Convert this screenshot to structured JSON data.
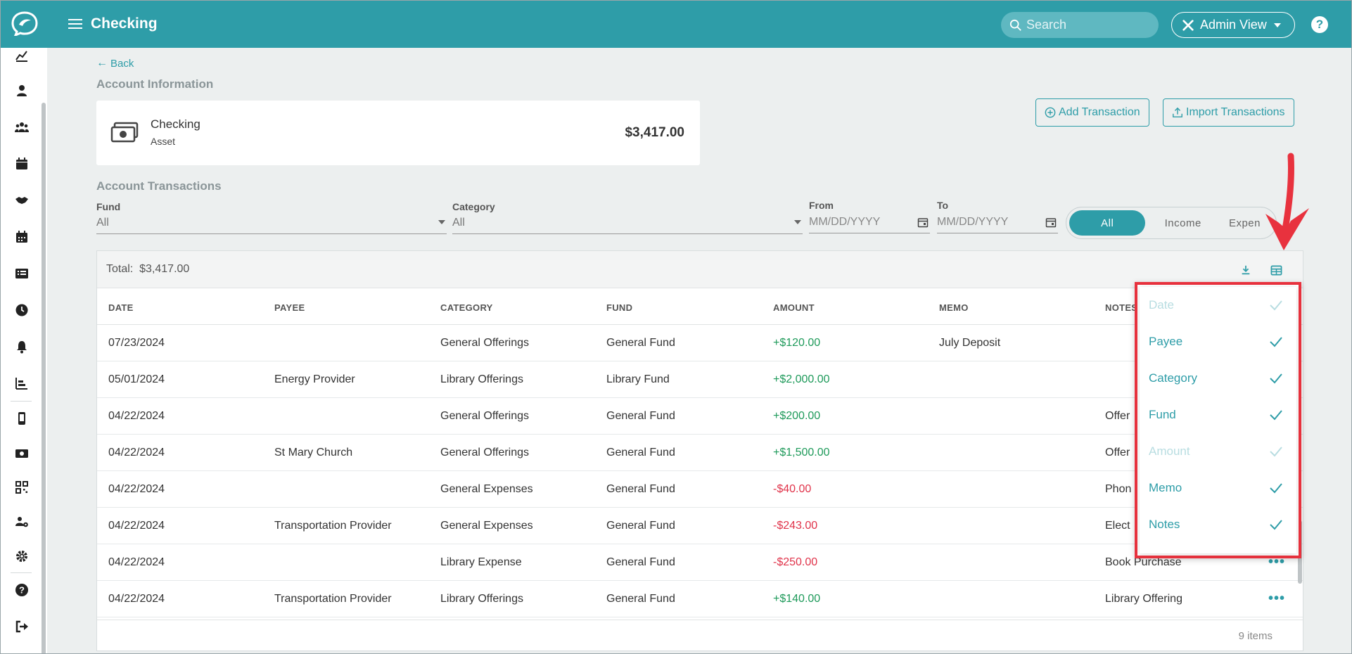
{
  "header": {
    "title": "Checking",
    "search_placeholder": "Search",
    "admin_view_label": "Admin View",
    "help_label": "?"
  },
  "sidebar": {
    "icons": [
      "chart-line-icon",
      "user-icon",
      "users-icon",
      "calendar-icon",
      "handshake-icon",
      "calendar-days-icon",
      "list-icon",
      "clock-icon",
      "bell-icon",
      "bar-chart-icon",
      "mobile-icon",
      "money-icon",
      "qr-code-icon",
      "user-group-gear-icon",
      "gear-icon",
      "help-circle-icon",
      "sign-out-icon"
    ]
  },
  "main": {
    "back_label": "Back",
    "account_info_title": "Account Information",
    "account": {
      "name": "Checking",
      "type": "Asset",
      "balance": "$3,417.00"
    },
    "add_transaction_label": "Add Transaction",
    "import_transactions_label": "Import Transactions",
    "transactions_title": "Account Transactions",
    "filters": {
      "fund_label": "Fund",
      "fund_value": "All",
      "category_label": "Category",
      "category_value": "All",
      "from_label": "From",
      "from_placeholder": "MM/DD/YYYY",
      "to_label": "To",
      "to_placeholder": "MM/DD/YYYY",
      "toggle": [
        "All",
        "Income",
        "Expen"
      ]
    }
  },
  "grid": {
    "total_label": "Total:",
    "total_value": "$3,417.00",
    "columns": [
      "DATE",
      "PAYEE",
      "CATEGORY",
      "FUND",
      "AMOUNT",
      "MEMO",
      "NOTES"
    ],
    "rows": [
      {
        "date": "07/23/2024",
        "payee": "",
        "category": "General Offerings",
        "fund": "General Fund",
        "amount": "+$120.00",
        "memo": "July Deposit",
        "notes": ""
      },
      {
        "date": "05/01/2024",
        "payee": "Energy Provider",
        "category": "Library Offerings",
        "fund": "Library Fund",
        "amount": "+$2,000.00",
        "memo": "",
        "notes": ""
      },
      {
        "date": "04/22/2024",
        "payee": "",
        "category": "General Offerings",
        "fund": "General Fund",
        "amount": "+$200.00",
        "memo": "",
        "notes": "Offer"
      },
      {
        "date": "04/22/2024",
        "payee": "St Mary Church",
        "category": "General Offerings",
        "fund": "General Fund",
        "amount": "+$1,500.00",
        "memo": "",
        "notes": "Offer"
      },
      {
        "date": "04/22/2024",
        "payee": "",
        "category": "General Expenses",
        "fund": "General Fund",
        "amount": "-$40.00",
        "memo": "",
        "notes": "Phon"
      },
      {
        "date": "04/22/2024",
        "payee": "Transportation Provider",
        "category": "General Expenses",
        "fund": "General Fund",
        "amount": "-$243.00",
        "memo": "",
        "notes": "Elect"
      },
      {
        "date": "04/22/2024",
        "payee": "",
        "category": "Library Expense",
        "fund": "General Fund",
        "amount": "-$250.00",
        "memo": "",
        "notes": "Book Purchase"
      },
      {
        "date": "04/22/2024",
        "payee": "Transportation Provider",
        "category": "Library Offerings",
        "fund": "General Fund",
        "amount": "+$140.00",
        "memo": "",
        "notes": "Library Offering"
      }
    ],
    "more_label": "•••",
    "items_count": "9 items"
  },
  "column_chooser": {
    "items": [
      {
        "label": "Date",
        "checked": true,
        "disabled": true
      },
      {
        "label": "Payee",
        "checked": true,
        "disabled": false
      },
      {
        "label": "Category",
        "checked": true,
        "disabled": false
      },
      {
        "label": "Fund",
        "checked": true,
        "disabled": false
      },
      {
        "label": "Amount",
        "checked": true,
        "disabled": true
      },
      {
        "label": "Memo",
        "checked": true,
        "disabled": false
      },
      {
        "label": "Notes",
        "checked": true,
        "disabled": false
      }
    ]
  },
  "colors": {
    "accent": "#2e9da8",
    "positive": "#1e9a5a",
    "negative": "#e0334a",
    "highlight": "#e8323e"
  }
}
